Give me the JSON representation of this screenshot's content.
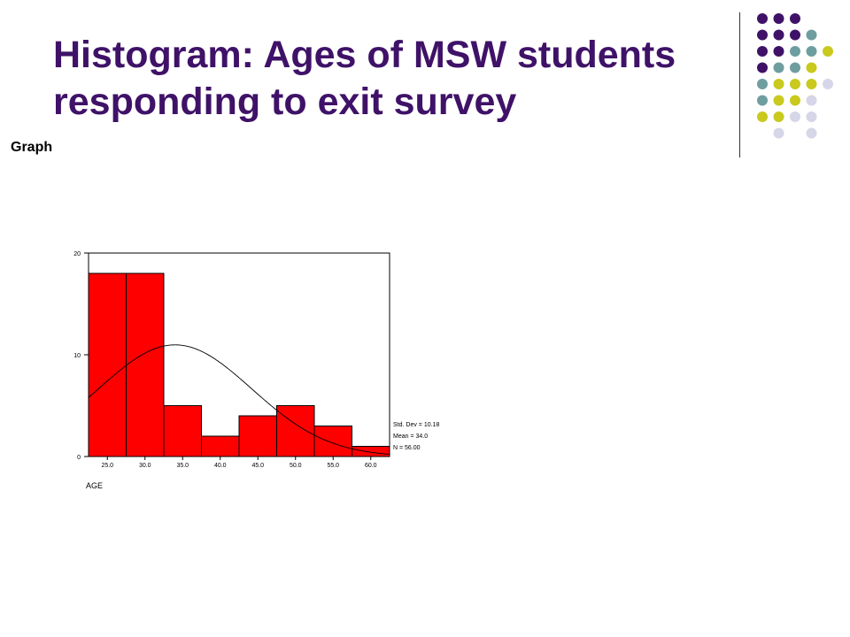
{
  "slide": {
    "title": "Histogram: Ages of MSW students responding to exit survey",
    "subtitle": "Graph"
  },
  "decoration": {
    "colors": {
      "purple": "#3f1268",
      "teal": "#6e9ea0",
      "olive": "#c9c91e",
      "lavender": "#d6d6e8"
    },
    "dot_grid": [
      [
        "purple",
        "purple",
        "purple",
        null,
        null
      ],
      [
        "purple",
        "purple",
        "purple",
        "teal",
        null
      ],
      [
        "purple",
        "purple",
        "teal",
        "teal",
        "olive"
      ],
      [
        "purple",
        "teal",
        "teal",
        "olive",
        null
      ],
      [
        "teal",
        "olive",
        "olive",
        "olive",
        "lavender"
      ],
      [
        "teal",
        "olive",
        "olive",
        "lavender",
        null
      ],
      [
        "olive",
        "olive",
        "lavender",
        "lavender",
        null
      ],
      [
        null,
        "lavender",
        null,
        "lavender",
        null
      ]
    ]
  },
  "chart_data": {
    "type": "bar",
    "xlabel": "AGE",
    "ylabel": "",
    "bar_color": "#ff0000",
    "categories": [
      "25.0",
      "30.0",
      "35.0",
      "40.0",
      "45.0",
      "50.0",
      "55.0",
      "60.0"
    ],
    "values": [
      18,
      18,
      5,
      2,
      4,
      5,
      3,
      1
    ],
    "ylim": [
      0,
      20
    ],
    "yticks": [
      "0",
      "10",
      "20"
    ],
    "x_range": [
      22.5,
      62.5
    ],
    "normal_curve": {
      "mean": 34.0,
      "std_dev": 10.18,
      "n": 56,
      "bin_width": 5
    },
    "stats_labels": [
      "Std. Dev = 10.18",
      "Mean = 34.0",
      "N = 56.00"
    ],
    "grid": false,
    "legend": "none"
  }
}
